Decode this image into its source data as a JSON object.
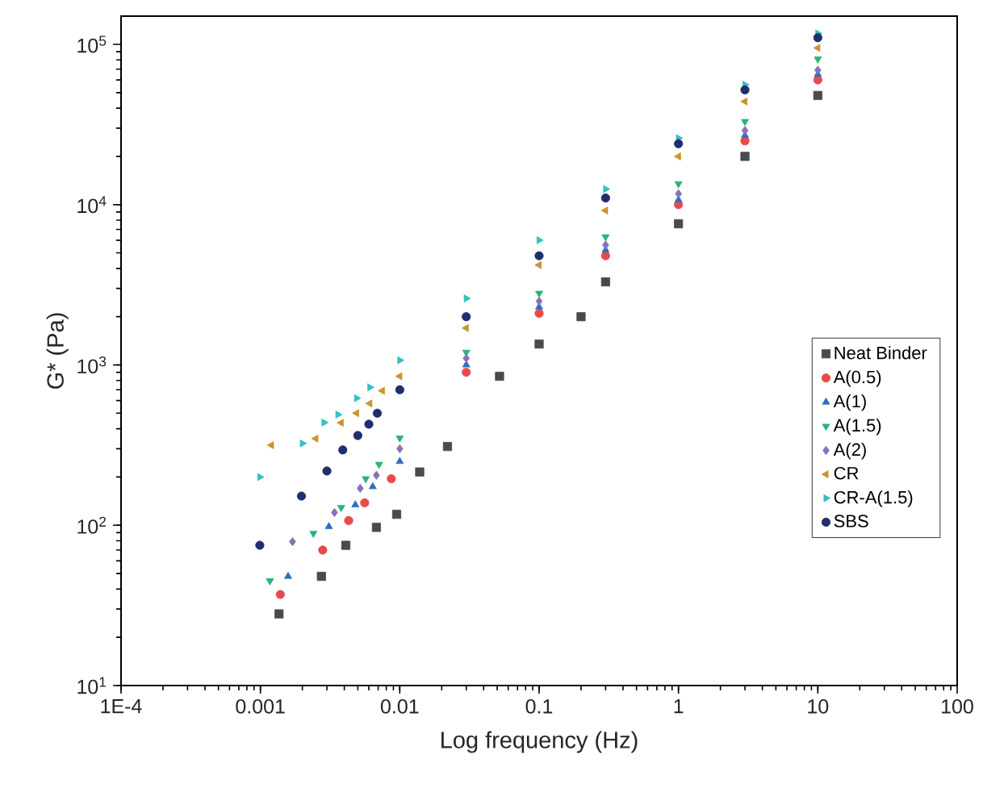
{
  "chart_data": {
    "type": "scatter",
    "xlabel": "Log frequency (Hz)",
    "ylabel": "G* (Pa)",
    "log": "xy",
    "xlim": [
      0.0001,
      100
    ],
    "ylim": [
      10,
      150000
    ],
    "xticks": [
      {
        "value": 0.0001,
        "label": "1E-4"
      },
      0.001,
      0.01,
      0.1,
      1,
      10,
      100
    ],
    "yticks": [
      {
        "value": 10,
        "label": "10$^{1}$"
      },
      {
        "value": 100,
        "label": "10$^{2}$"
      },
      {
        "value": 1000,
        "label": "10$^{3}$"
      },
      {
        "value": 10000,
        "label": "10$^{4}$"
      },
      {
        "value": 100000,
        "label": "10$^{5}$"
      }
    ],
    "grid": false,
    "legend": "right",
    "series": [
      {
        "name": "Neat Binder",
        "color": "#4a4a4a",
        "marker": "square",
        "x": [
          0.00136,
          0.00274,
          0.0041,
          0.0068,
          0.0095,
          0.0139,
          0.022,
          0.052,
          0.1,
          0.2,
          0.3,
          1,
          3,
          10
        ],
        "values": [
          28,
          48,
          75,
          97,
          117,
          215,
          310,
          850,
          1350,
          2000,
          3300,
          7600,
          20000,
          48000
        ]
      },
      {
        "name": "A(0.5)",
        "color": "#e84a4a",
        "marker": "circle",
        "x": [
          0.00139,
          0.0028,
          0.0043,
          0.0056,
          0.0087,
          0.03,
          0.1,
          0.3,
          1,
          3,
          10
        ],
        "values": [
          37,
          70,
          107,
          138,
          195,
          900,
          2100,
          4800,
          10000,
          25000,
          60000
        ]
      },
      {
        "name": "A(1)",
        "color": "#2e6fc0",
        "marker": "triangle",
        "x": [
          0.00158,
          0.0031,
          0.0048,
          0.0064,
          0.01,
          0.03,
          0.1,
          0.3,
          1,
          3,
          10
        ],
        "values": [
          48,
          98,
          134,
          174,
          250,
          1000,
          2300,
          5200,
          10700,
          27000,
          65000
        ]
      },
      {
        "name": "A(1.5)",
        "color": "#2ab573",
        "marker": "triangle-down",
        "x": [
          0.00117,
          0.0024,
          0.0038,
          0.0057,
          0.0071,
          0.01,
          0.03,
          0.1,
          0.3,
          1,
          3,
          10
        ],
        "values": [
          45,
          89,
          129,
          195,
          240,
          350,
          1200,
          2800,
          6300,
          13500,
          33000,
          81000
        ]
      },
      {
        "name": "A(2)",
        "color": "#8c6fb8",
        "marker": "diamond",
        "x": [
          0.0017,
          0.0034,
          0.0052,
          0.0068,
          0.01,
          0.03,
          0.1,
          0.3,
          1,
          3,
          10
        ],
        "values": [
          79,
          120,
          170,
          205,
          300,
          1100,
          2500,
          5600,
          11700,
          29000,
          69000
        ]
      },
      {
        "name": "CR",
        "color": "#c8962a",
        "marker": "triangle-left",
        "x": [
          0.0012,
          0.0025,
          0.0038,
          0.0049,
          0.0061,
          0.0075,
          0.01,
          0.03,
          0.1,
          0.3,
          1,
          3,
          10
        ],
        "values": [
          316,
          347,
          436,
          500,
          575,
          690,
          850,
          1700,
          4200,
          9200,
          20000,
          44000,
          95000
        ]
      },
      {
        "name": "CR-A(1.5)",
        "color": "#33c0c0",
        "marker": "triangle-right",
        "x": [
          0.00099,
          0.002,
          0.00286,
          0.0036,
          0.0049,
          0.0061,
          0.01,
          0.03,
          0.1,
          0.3,
          1,
          3,
          10
        ],
        "values": [
          200,
          324,
          437,
          490,
          620,
          725,
          1070,
          2600,
          6000,
          12500,
          26000,
          56000,
          117000
        ]
      },
      {
        "name": "SBS",
        "color": "#1f2e6e",
        "marker": "circle",
        "x": [
          0.00099,
          0.00197,
          0.003,
          0.0039,
          0.005,
          0.006,
          0.0069,
          0.01,
          0.03,
          0.1,
          0.3,
          1,
          3,
          10
        ],
        "values": [
          75,
          152,
          218,
          295,
          363,
          427,
          500,
          700,
          2000,
          4800,
          11000,
          24000,
          52000,
          110000
        ]
      }
    ]
  }
}
